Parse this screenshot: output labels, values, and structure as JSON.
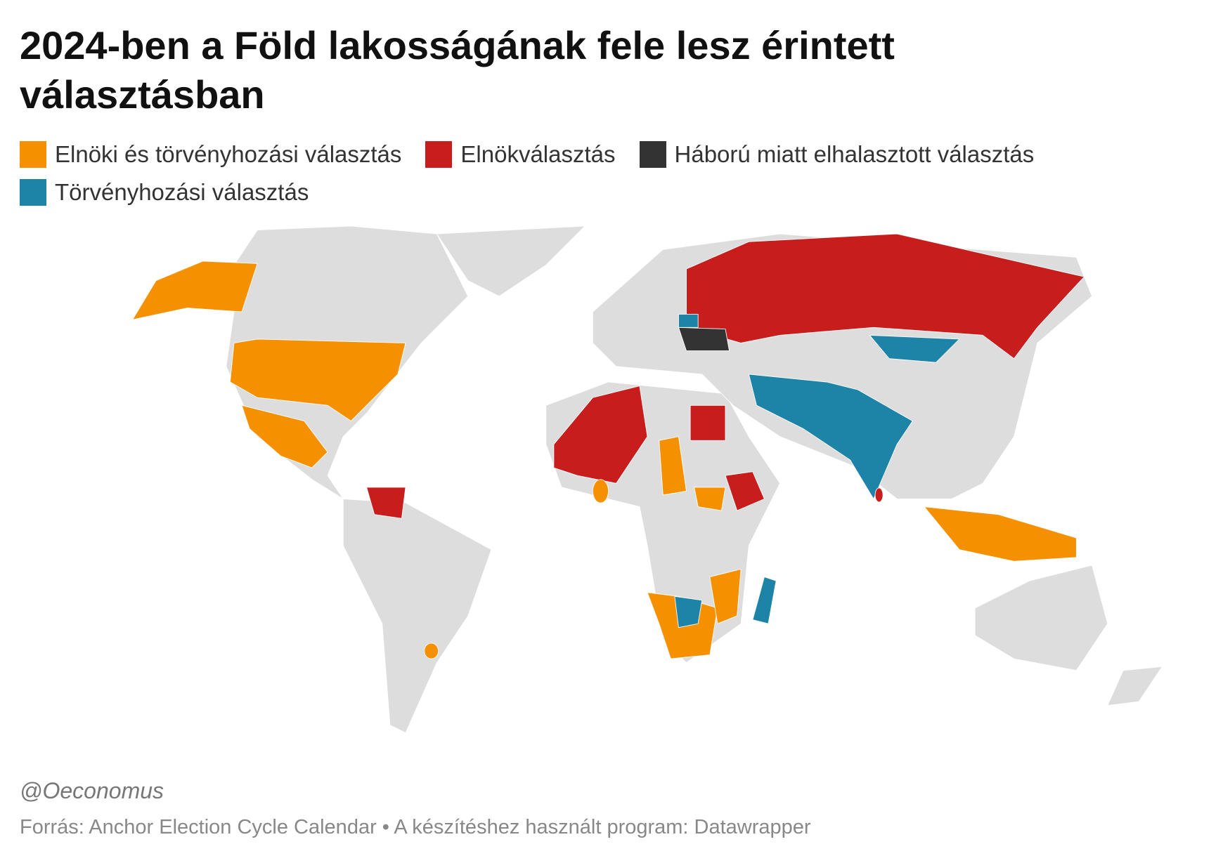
{
  "title": "2024-ben a Föld lakosságának fele lesz érintett választásban",
  "legend": [
    {
      "label": "Elnöki és törvényhozási választás",
      "color": "#f59000"
    },
    {
      "label": "Elnökválasztás",
      "color": "#c71e1d"
    },
    {
      "label": "Háború miatt elhalasztott választás",
      "color": "#333333"
    },
    {
      "label": "Törvényhozási választás",
      "color": "#1d84a7"
    }
  ],
  "credit": "@Oeconomus",
  "source": "Forrás: Anchor Election Cycle Calendar • A készítéshez használt program: Datawrapper"
}
